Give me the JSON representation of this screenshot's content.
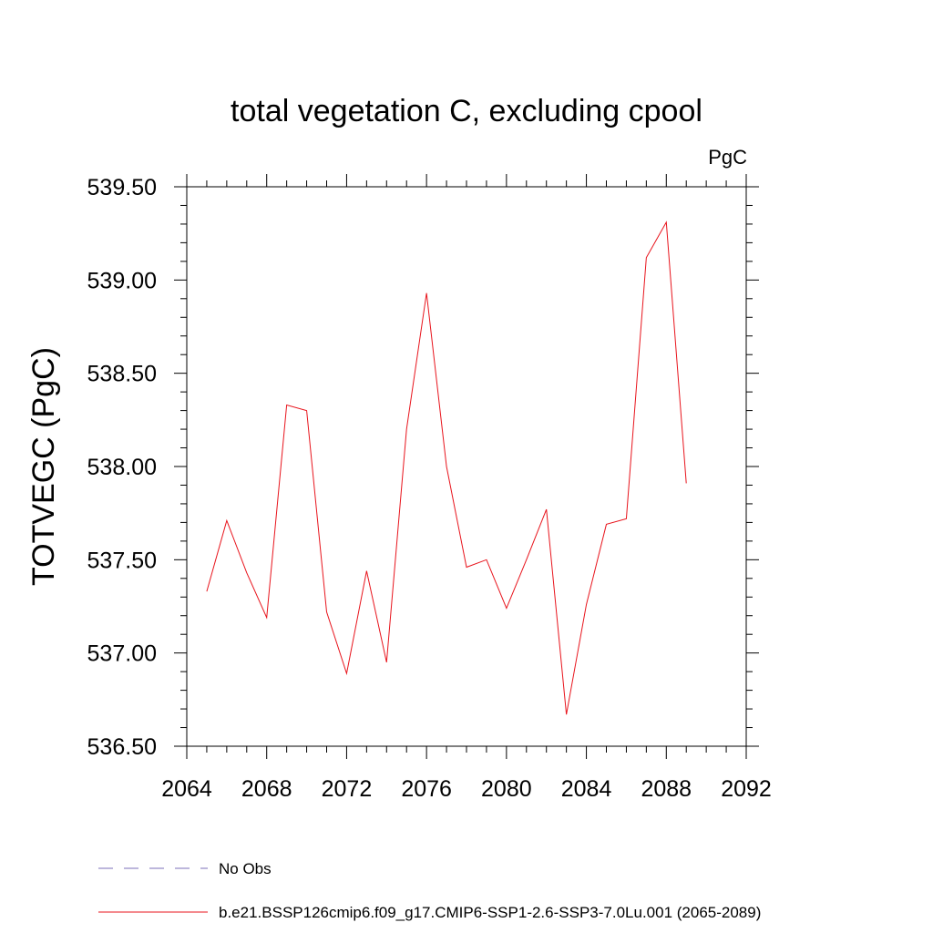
{
  "chart_data": {
    "type": "line",
    "title": "total vegetation C, excluding cpool",
    "units_label": "PgC",
    "ylabel": "TOTVEGC  (PgC)",
    "xlabel": "",
    "xlim": [
      2064,
      2092
    ],
    "ylim": [
      536.5,
      539.5
    ],
    "xticks": [
      "2064",
      "2068",
      "2072",
      "2076",
      "2080",
      "2084",
      "2088",
      "2092"
    ],
    "yticks": [
      "536.50",
      "537.00",
      "537.50",
      "538.00",
      "538.50",
      "539.00",
      "539.50"
    ],
    "grid": false,
    "legend_position": "bottom",
    "series": [
      {
        "name": "b.e21.BSSP126cmip6.f09_g17.CMIP6-SSP1-2.6-SSP3-7.0Lu.001 (2065-2089)",
        "color": "#e8141c",
        "style": "solid",
        "x": [
          2065,
          2066,
          2067,
          2068,
          2069,
          2070,
          2071,
          2072,
          2073,
          2074,
          2075,
          2076,
          2077,
          2078,
          2079,
          2080,
          2081,
          2082,
          2083,
          2084,
          2085,
          2086,
          2087,
          2088,
          2089
        ],
        "y": [
          537.33,
          537.71,
          537.43,
          537.19,
          538.33,
          538.3,
          537.22,
          536.89,
          537.44,
          536.95,
          538.2,
          538.93,
          538.0,
          537.46,
          537.5,
          537.24,
          537.5,
          537.77,
          536.67,
          537.26,
          537.69,
          537.72,
          539.12,
          539.31,
          537.91
        ]
      },
      {
        "name": "No Obs",
        "color": "#7b6fb8",
        "style": "dashed",
        "x": [],
        "y": []
      }
    ]
  }
}
